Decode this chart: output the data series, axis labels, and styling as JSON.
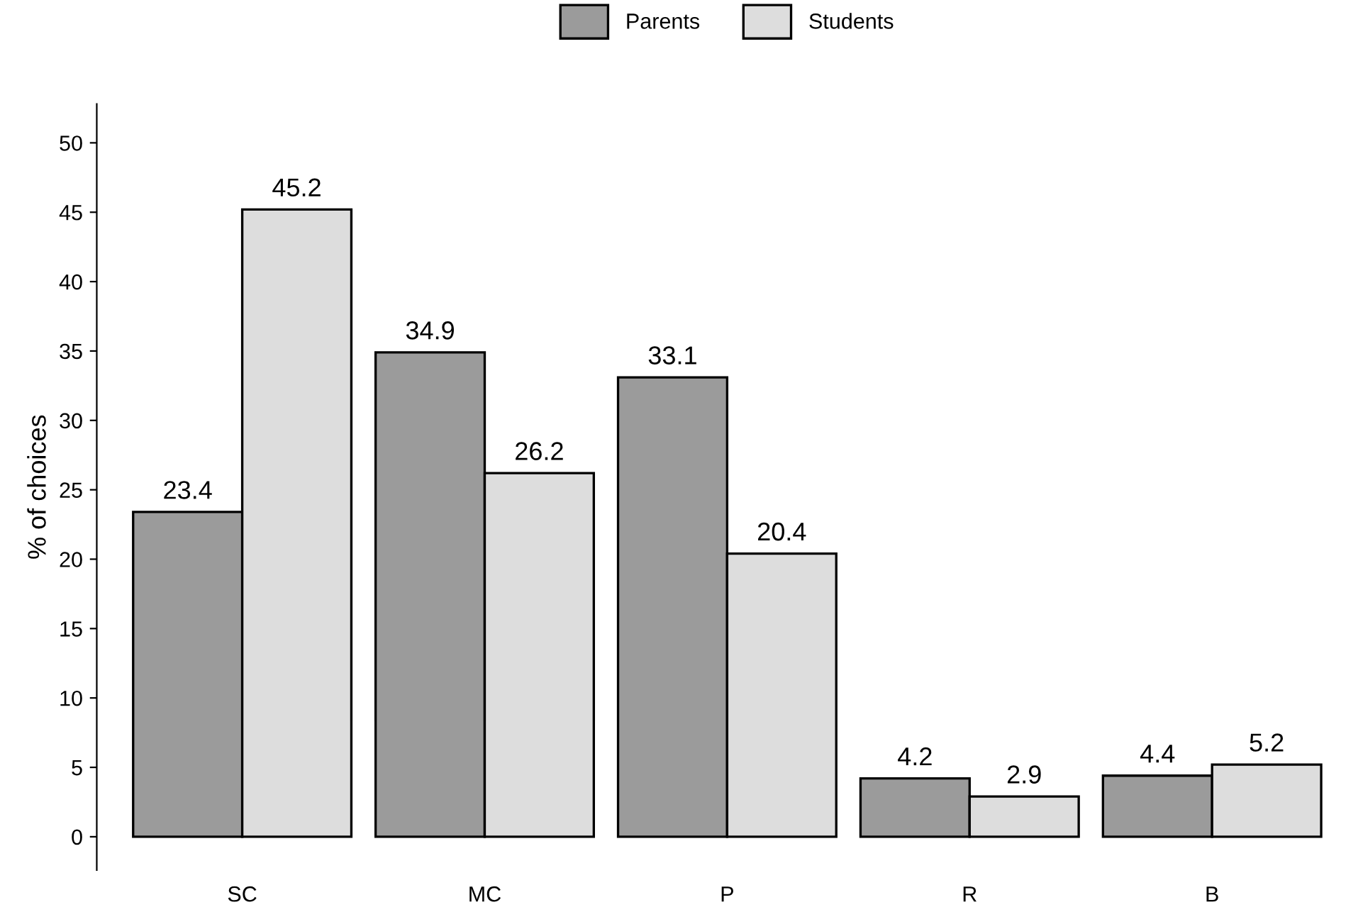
{
  "chart_data": {
    "type": "bar",
    "ylabel": "% of choices",
    "categories": [
      "SC",
      "MC",
      "P",
      "R",
      "B"
    ],
    "series": [
      {
        "name": "Parents",
        "color": "#9b9b9b",
        "values": [
          23.4,
          34.9,
          33.1,
          4.2,
          4.4
        ]
      },
      {
        "name": "Students",
        "color": "#dddddd",
        "values": [
          45.2,
          26.2,
          20.4,
          2.9,
          5.2
        ]
      }
    ],
    "ylim": [
      -2.4,
      52.8
    ],
    "yticks": [
      0,
      5,
      10,
      15,
      20,
      25,
      30,
      35,
      40,
      45,
      50
    ],
    "data_labels": true,
    "grid": false,
    "legend": "top"
  }
}
